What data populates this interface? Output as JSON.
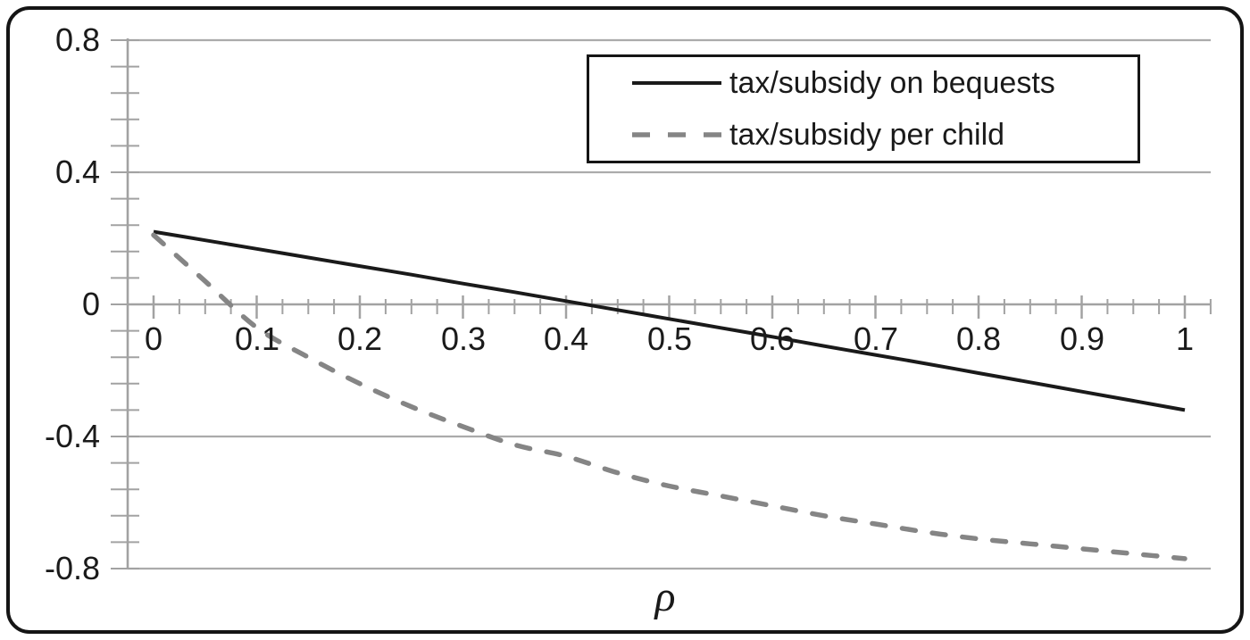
{
  "chart_data": {
    "type": "line",
    "title": "",
    "xlabel": "ρ",
    "ylabel": "",
    "xlim": [
      0,
      1
    ],
    "ylim": [
      -0.8,
      0.8
    ],
    "grid": "horizontal-major",
    "legend_position": "top-center-right-inside",
    "x_major_unit": 0.1,
    "x_minor_unit": 0.025,
    "y_major_unit": 0.4,
    "y_minor_unit": 0.08,
    "x_ticks": [
      {
        "value": 0,
        "label": "0"
      },
      {
        "value": 0.1,
        "label": "0.1"
      },
      {
        "value": 0.2,
        "label": "0.2"
      },
      {
        "value": 0.3,
        "label": "0.3"
      },
      {
        "value": 0.4,
        "label": "0.4"
      },
      {
        "value": 0.5,
        "label": "0.5"
      },
      {
        "value": 0.6,
        "label": "0.6"
      },
      {
        "value": 0.7,
        "label": "0.7"
      },
      {
        "value": 0.8,
        "label": "0.8"
      },
      {
        "value": 0.9,
        "label": "0.9"
      },
      {
        "value": 1,
        "label": "1"
      }
    ],
    "y_ticks": [
      {
        "value": 0.8,
        "label": "0.8"
      },
      {
        "value": 0.4,
        "label": "0.4"
      },
      {
        "value": 0,
        "label": "0"
      },
      {
        "value": -0.4,
        "label": "-0.4"
      },
      {
        "value": -0.8,
        "label": "-0.8"
      }
    ],
    "x": [
      0,
      0.05,
      0.1,
      0.15,
      0.2,
      0.25,
      0.3,
      0.35,
      0.4,
      0.45,
      0.5,
      0.55,
      0.6,
      0.65,
      0.7,
      0.75,
      0.8,
      0.85,
      0.9,
      0.95,
      1
    ],
    "series": [
      {
        "name": "tax/subsidy on bequests",
        "style": "solid",
        "color": "#1a1a1a",
        "zero_crossing_x": 0.42,
        "values": [
          0.22,
          0.194,
          0.168,
          0.142,
          0.116,
          0.09,
          0.063,
          0.037,
          0.01,
          -0.017,
          -0.044,
          -0.071,
          -0.098,
          -0.126,
          -0.153,
          -0.18,
          -0.208,
          -0.236,
          -0.264,
          -0.292,
          -0.32
        ]
      },
      {
        "name": "tax/subsidy per child",
        "style": "dashed",
        "color": "#858585",
        "zero_crossing_x": 0.08,
        "values": [
          0.21,
          0.07,
          -0.07,
          -0.16,
          -0.24,
          -0.31,
          -0.37,
          -0.425,
          -0.46,
          -0.51,
          -0.55,
          -0.58,
          -0.61,
          -0.64,
          -0.665,
          -0.69,
          -0.71,
          -0.725,
          -0.74,
          -0.755,
          -0.77
        ]
      }
    ],
    "colors": {
      "axis": "#a2a2a2",
      "gridline": "#ababab",
      "text": "#1a1a1a",
      "frame_border": "#151515"
    }
  }
}
